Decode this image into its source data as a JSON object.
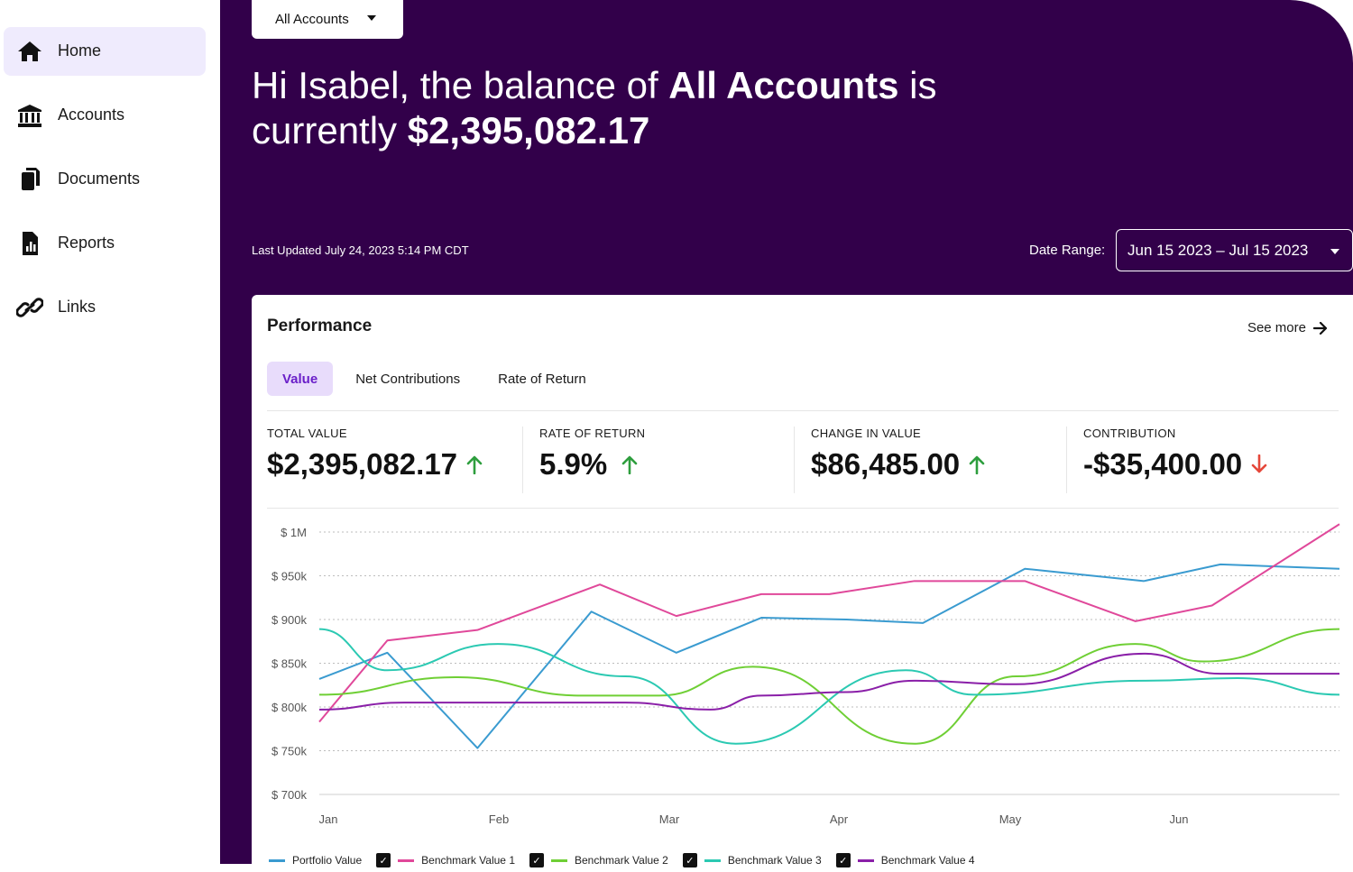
{
  "sidebar": {
    "items": [
      {
        "label": "Home",
        "icon": "home-icon",
        "active": true
      },
      {
        "label": "Accounts",
        "icon": "bank-icon",
        "active": false
      },
      {
        "label": "Documents",
        "icon": "documents-icon",
        "active": false
      },
      {
        "label": "Reports",
        "icon": "report-icon",
        "active": false
      },
      {
        "label": "Links",
        "icon": "link-icon",
        "active": false
      }
    ]
  },
  "header": {
    "account_selector": "All Accounts",
    "greeting_prefix": "Hi Isabel, the balance of ",
    "greeting_account": "All Accounts",
    "greeting_mid": " is currently ",
    "greeting_balance": "$2,395,082.17",
    "last_updated": "Last Updated July 24, 2023 5:14 PM CDT",
    "date_range_label": "Date Range:",
    "date_range_value": "Jun 15 2023 – Jul 15 2023"
  },
  "performance": {
    "title": "Performance",
    "see_more": "See more",
    "tabs": [
      {
        "label": "Value",
        "active": true
      },
      {
        "label": "Net Contributions",
        "active": false
      },
      {
        "label": "Rate of Return",
        "active": false
      }
    ],
    "metrics": [
      {
        "label": "TOTAL VALUE",
        "value": "$2,395,082.17",
        "trend": "up"
      },
      {
        "label": "RATE OF RETURN",
        "value": "5.9%",
        "trend": "up"
      },
      {
        "label": "CHANGE IN VALUE",
        "value": "$86,485.00",
        "trend": "up"
      },
      {
        "label": "CONTRIBUTION",
        "value": "-$35,400.00",
        "trend": "down"
      }
    ]
  },
  "colors": {
    "hero_bg": "#32004a",
    "trend_up": "#2e9e3e",
    "trend_down": "#e5473a"
  },
  "chart_data": {
    "type": "line",
    "y_ticks": [
      "$ 1M",
      "$ 950k",
      "$ 900k",
      "$ 850k",
      "$ 800k",
      "$ 750k",
      "$ 700k"
    ],
    "ylim": [
      700,
      1000
    ],
    "x_ticks": [
      "Jan",
      "Feb",
      "Mar",
      "Apr",
      "May",
      "Jun"
    ],
    "x_tick_positions": [
      0,
      1,
      2,
      3,
      4,
      5
    ],
    "xlim": [
      0,
      6.0
    ],
    "grid": true,
    "legend_placement": "bottom",
    "series": [
      {
        "name": "Portfolio Value",
        "color": "#3a9bd0",
        "checked": false,
        "x": [
          0,
          0.4,
          0.93,
          1.6,
          2.1,
          2.6,
          3.1,
          3.55,
          4.15,
          4.85,
          5.3,
          6.0
        ],
        "values": [
          832,
          862,
          753,
          909,
          862,
          902,
          900,
          896,
          958,
          944,
          963,
          958
        ]
      },
      {
        "name": "Benchmark Value 1",
        "color": "#e0489a",
        "checked": true,
        "x": [
          0,
          0.4,
          0.93,
          1.65,
          2.1,
          2.6,
          3.0,
          3.5,
          4.15,
          4.8,
          5.25,
          6.0
        ],
        "values": [
          783,
          876,
          888,
          940,
          904,
          929,
          929,
          944,
          944,
          898,
          916,
          1009
        ]
      },
      {
        "name": "Benchmark Value 2",
        "color": "#6fcf35",
        "checked": true,
        "x": [
          0,
          0.8,
          1.55,
          2.0,
          2.55,
          3.5,
          4.1,
          4.8,
          5.2,
          6.0
        ],
        "values": [
          814,
          834,
          813,
          813,
          846,
          758,
          835,
          872,
          852,
          889
        ],
        "smooth": true
      },
      {
        "name": "Benchmark Value 3",
        "color": "#2bc9b2",
        "checked": true,
        "x": [
          0,
          0.4,
          1.05,
          1.8,
          2.45,
          3.45,
          3.85,
          4.85,
          5.4,
          6.0
        ],
        "values": [
          889,
          842,
          872,
          835,
          758,
          842,
          814,
          830,
          833,
          814
        ],
        "smooth": true
      },
      {
        "name": "Benchmark Value 4",
        "color": "#8a1fa8",
        "checked": true,
        "x": [
          0,
          0.5,
          1.0,
          1.8,
          2.3,
          2.6,
          3.1,
          3.5,
          4.1,
          4.85,
          5.3,
          6.0
        ],
        "values": [
          797,
          805,
          805,
          805,
          797,
          813,
          817,
          830,
          826,
          861,
          838,
          838
        ],
        "smooth": true
      }
    ]
  }
}
